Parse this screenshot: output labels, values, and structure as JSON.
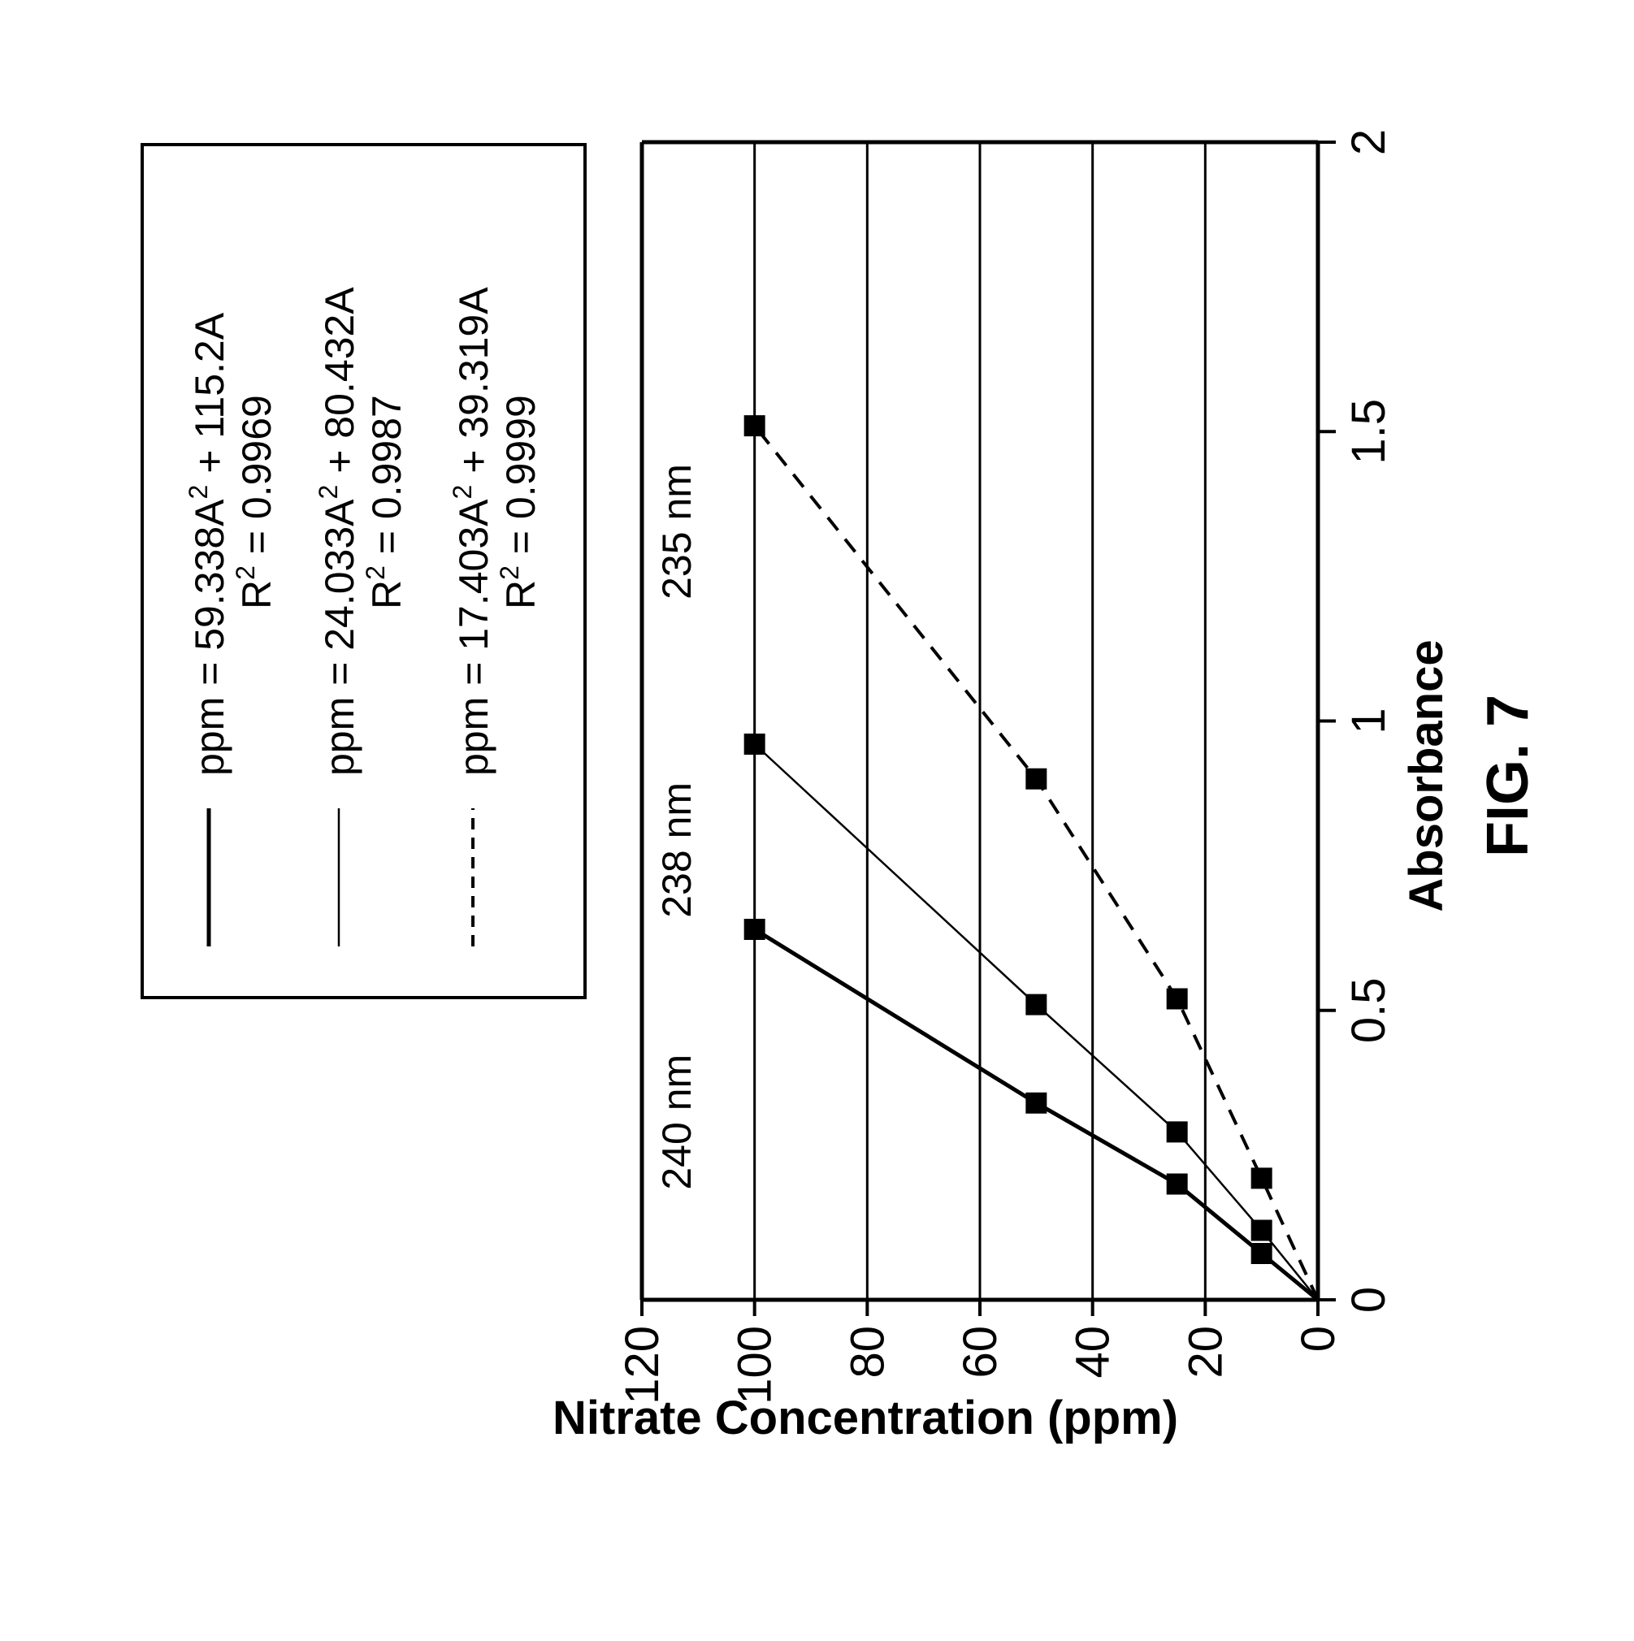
{
  "chart_data": {
    "type": "line",
    "title": "",
    "xlabel": "Absorbance",
    "ylabel": "Nitrate Concentration (ppm)",
    "xlim": [
      0,
      2
    ],
    "ylim": [
      0,
      120
    ],
    "x_ticks": [
      "0",
      "0.5",
      "1",
      "1.5",
      "2"
    ],
    "y_ticks": [
      "0",
      "20",
      "40",
      "60",
      "80",
      "100",
      "120"
    ],
    "grid": "horizontal",
    "figure_label": "FIG. 7",
    "orientation": "rotated 90° counter-clockwise",
    "legend": {
      "placement": "top-left",
      "entries": [
        {
          "style": "thick-solid",
          "eq_a": "ppm = 59.338A",
          "eq_b": " + 115.2A",
          "r2_value": " = 0.9969"
        },
        {
          "style": "thin-solid",
          "eq_a": "ppm = 24.033A",
          "eq_b": " + 80.432A",
          "r2_value": " = 0.9987"
        },
        {
          "style": "dashed",
          "eq_a": "ppm = 17.403A",
          "eq_b": " + 39.319A",
          "r2_value": " = 0.9999"
        }
      ],
      "sup2": "2",
      "r_letter": "R"
    },
    "series": [
      {
        "name": "240 nm",
        "style": "thick-solid",
        "points": [
          [
            0.08,
            10
          ],
          [
            0.2,
            25
          ],
          [
            0.34,
            50
          ],
          [
            0.64,
            100
          ]
        ],
        "fit": [
          59.338,
          115.2
        ]
      },
      {
        "name": "238 nm",
        "style": "thin-solid",
        "points": [
          [
            0.12,
            10
          ],
          [
            0.29,
            25
          ],
          [
            0.51,
            50
          ],
          [
            0.96,
            100
          ]
        ],
        "fit": [
          24.033,
          80.432
        ]
      },
      {
        "name": "235 nm",
        "style": "dashed",
        "points": [
          [
            0.21,
            10
          ],
          [
            0.52,
            25
          ],
          [
            0.9,
            50
          ],
          [
            1.51,
            100
          ]
        ],
        "fit": [
          17.403,
          39.319
        ]
      }
    ]
  }
}
